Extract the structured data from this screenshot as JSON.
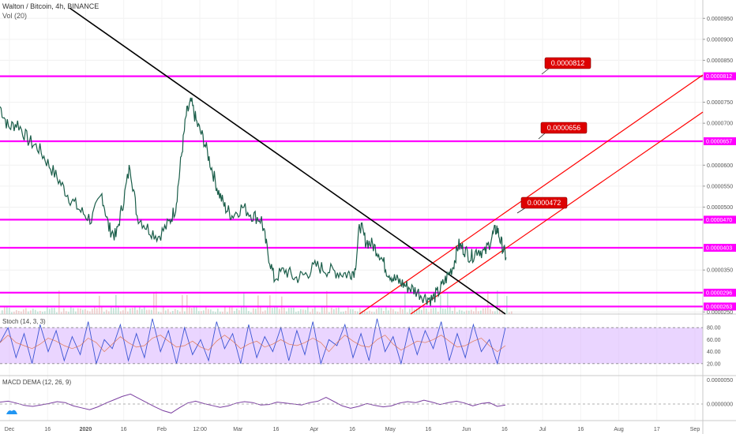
{
  "header": {
    "title": "Walton / Bitcoin, 4h, BINANCE",
    "volume_label": "Vol (20)"
  },
  "stoch": {
    "label": "Stoch (14, 3, 3)",
    "ticks": [
      "80.00",
      "60.00",
      "40.00",
      "20.00"
    ]
  },
  "macd": {
    "label": "MACD DEMA (12, 26, 9)",
    "ticks": [
      "0.0000050",
      "0.0000000"
    ]
  },
  "colors": {
    "level_line": "#ff00ff",
    "channel": "#ff0000",
    "trendline": "#000000",
    "price": "#1b5e4a",
    "stoch_band": "#d9b3ff",
    "macd": "#7b3fa0",
    "callout": "#dd0000"
  },
  "chart_data": {
    "type": "candlestick",
    "title": "Walton / Bitcoin, 4h, BINANCE",
    "x_ticks": [
      "Dec",
      "16",
      "2020",
      "16",
      "Feb",
      "12:00",
      "Mar",
      "16",
      "Apr",
      "16",
      "May",
      "16",
      "Jun",
      "16",
      "Jul",
      "16",
      "Aug",
      "17",
      "Sep"
    ],
    "y_ticks": [
      "0.0000950",
      "0.0000900",
      "0.0000850",
      "0.0000750",
      "0.0000700",
      "0.0000600",
      "0.0000550",
      "0.0000500",
      "0.0000350",
      "0.0000250"
    ],
    "ylim": [
      2.45e-05,
      9.9e-05
    ],
    "horizontal_levels": [
      "0.0000812",
      "0.0000657",
      "0.0000470",
      "0.0000403",
      "0.0000296",
      "0.0000263"
    ],
    "callouts": [
      "0.0000812",
      "0.0000656",
      "0.0000472"
    ],
    "price_path": [
      [
        0.0,
        7.4e-05
      ],
      [
        0.012,
        6.9e-05
      ],
      [
        0.025,
        7e-05
      ],
      [
        0.04,
        6.6e-05
      ],
      [
        0.055,
        6.4e-05
      ],
      [
        0.07,
        6e-05
      ],
      [
        0.085,
        5.6e-05
      ],
      [
        0.1,
        5.2e-05
      ],
      [
        0.115,
        4.9e-05
      ],
      [
        0.13,
        4.7e-05
      ],
      [
        0.145,
        5.3e-05
      ],
      [
        0.155,
        4.5e-05
      ],
      [
        0.165,
        4.3e-05
      ],
      [
        0.175,
        5.1e-05
      ],
      [
        0.185,
        6e-05
      ],
      [
        0.195,
        4.8e-05
      ],
      [
        0.21,
        4.5e-05
      ],
      [
        0.225,
        4.3e-05
      ],
      [
        0.24,
        4.6e-05
      ],
      [
        0.25,
        5e-05
      ],
      [
        0.258,
        6.2e-05
      ],
      [
        0.265,
        7.2e-05
      ],
      [
        0.272,
        7.5e-05
      ],
      [
        0.28,
        7e-05
      ],
      [
        0.29,
        6.6e-05
      ],
      [
        0.3,
        6e-05
      ],
      [
        0.31,
        5.4e-05
      ],
      [
        0.32,
        5e-05
      ],
      [
        0.33,
        4.8e-05
      ],
      [
        0.345,
        5e-05
      ],
      [
        0.36,
        4.8e-05
      ],
      [
        0.372,
        4.7e-05
      ],
      [
        0.38,
        4e-05
      ],
      [
        0.39,
        3.3e-05
      ],
      [
        0.405,
        3.5e-05
      ],
      [
        0.42,
        3.3e-05
      ],
      [
        0.435,
        3.4e-05
      ],
      [
        0.45,
        3.6e-05
      ],
      [
        0.465,
        3.5e-05
      ],
      [
        0.48,
        3.45e-05
      ],
      [
        0.495,
        3.4e-05
      ],
      [
        0.505,
        3.5e-05
      ],
      [
        0.512,
        4.6e-05
      ],
      [
        0.52,
        4.2e-05
      ],
      [
        0.53,
        4.1e-05
      ],
      [
        0.54,
        3.9e-05
      ],
      [
        0.55,
        3.5e-05
      ],
      [
        0.56,
        3.3e-05
      ],
      [
        0.57,
        3.2e-05
      ],
      [
        0.58,
        3.1e-05
      ],
      [
        0.592,
        3e-05
      ],
      [
        0.605,
        2.85e-05
      ],
      [
        0.615,
        2.8e-05
      ],
      [
        0.625,
        3e-05
      ],
      [
        0.635,
        3.3e-05
      ],
      [
        0.645,
        3.6e-05
      ],
      [
        0.652,
        4.1e-05
      ],
      [
        0.66,
        4e-05
      ],
      [
        0.67,
        3.8e-05
      ],
      [
        0.68,
        4e-05
      ],
      [
        0.69,
        3.9e-05
      ],
      [
        0.7,
        4.3e-05
      ],
      [
        0.707,
        4.5e-05
      ],
      [
        0.714,
        4.1e-05
      ],
      [
        0.72,
        3.8e-05
      ]
    ],
    "stoch_series": [
      55,
      80,
      30,
      70,
      20,
      85,
      40,
      75,
      25,
      65,
      35,
      90,
      20,
      60,
      45,
      85,
      25,
      70,
      30,
      95,
      40,
      75,
      20,
      80,
      35,
      60,
      25,
      90,
      45,
      70,
      20,
      85,
      30,
      65,
      40,
      80,
      25,
      75,
      35,
      90,
      20,
      60,
      50,
      85,
      30,
      70,
      25,
      95,
      40,
      65,
      20,
      80,
      35,
      75,
      45,
      90,
      25,
      70,
      30,
      85,
      40,
      60,
      20,
      80
    ],
    "macd_series": [
      0.4,
      0.6,
      0.2,
      -0.3,
      -0.5,
      -0.2,
      0.1,
      0.5,
      0.3,
      -0.4,
      -0.8,
      -1.2,
      -0.6,
      0.2,
      0.9,
      1.6,
      2.1,
      1.2,
      0.3,
      -0.6,
      -1.4,
      -1.9,
      -0.8,
      0.2,
      0.6,
      0.1,
      -0.3,
      -0.7,
      -0.4,
      0.2,
      0.5,
      0.3,
      -0.2,
      -0.1,
      0.4,
      0.2,
      0.0,
      -0.2,
      0.3,
      0.6,
      1.4,
      0.5,
      -0.4,
      -0.9,
      -0.5,
      0.1,
      -0.3,
      -0.6,
      -0.4,
      0.2,
      0.5,
      0.3,
      0.8,
      0.4,
      -0.1,
      0.3,
      0.6,
      0.2,
      -0.4,
      0.1,
      0.3,
      -0.5,
      -0.2
    ]
  }
}
